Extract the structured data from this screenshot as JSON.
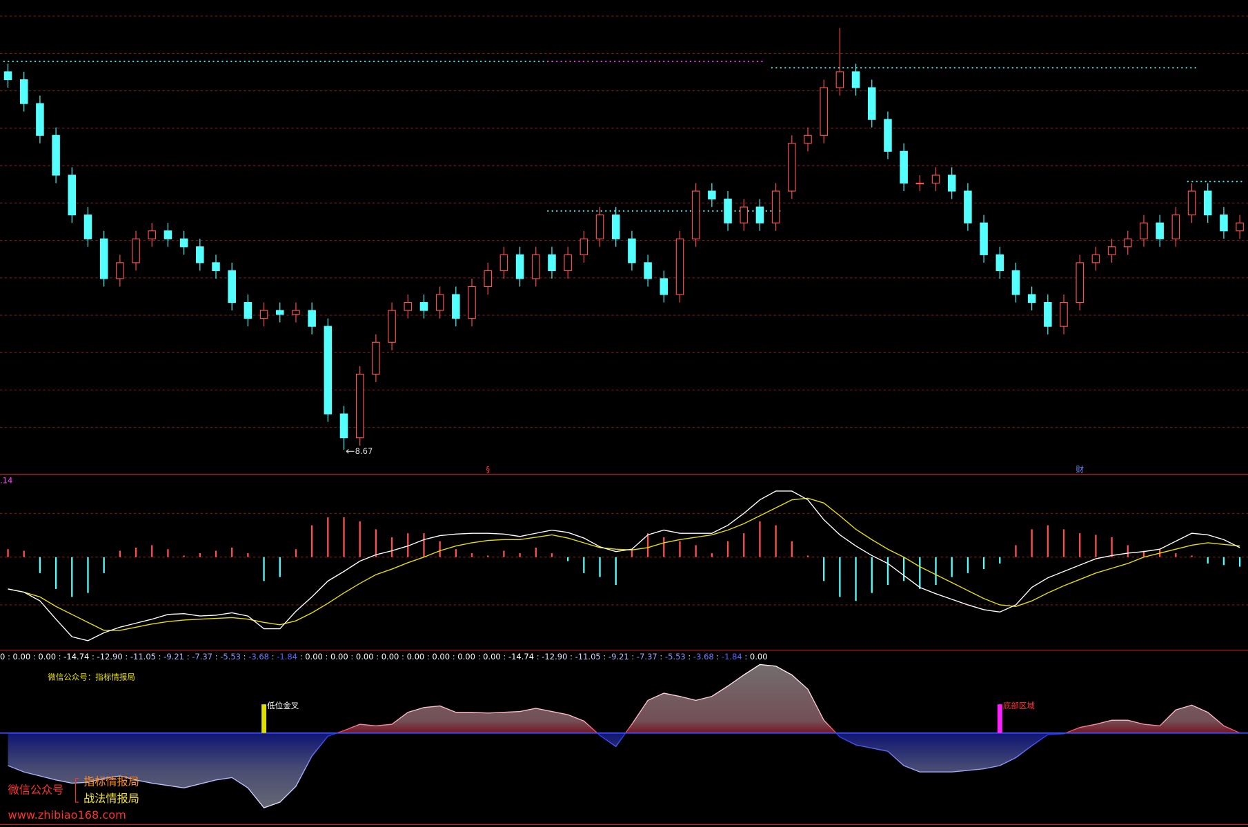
{
  "chart_data": [
    {
      "type": "candlestick",
      "open": [
        13.42,
        13.32,
        13.02,
        12.62,
        12.12,
        11.62,
        11.32,
        10.82,
        11.02,
        11.32,
        11.42,
        11.32,
        11.22,
        11.02,
        10.92,
        10.52,
        10.32,
        10.42,
        10.37,
        10.42,
        10.22,
        9.12,
        8.82,
        9.62,
        10.02,
        10.42,
        10.52,
        10.42,
        10.62,
        10.32,
        10.72,
        10.92,
        11.12,
        10.82,
        11.12,
        10.92,
        11.12,
        11.32,
        11.62,
        11.32,
        11.02,
        10.82,
        10.62,
        11.32,
        11.92,
        11.82,
        11.52,
        11.72,
        11.52,
        11.92,
        12.52,
        12.62,
        13.22,
        13.42,
        13.22,
        12.82,
        12.42,
        12.02,
        12.02,
        12.12,
        11.92,
        11.52,
        11.12,
        10.92,
        10.62,
        10.52,
        10.22,
        10.52,
        11.02,
        11.12,
        11.22,
        11.32,
        11.52,
        11.32,
        11.62,
        11.92,
        11.62,
        11.42
      ],
      "high": [
        13.52,
        13.42,
        13.12,
        12.72,
        12.22,
        11.72,
        11.42,
        11.12,
        11.42,
        11.52,
        11.52,
        11.42,
        11.32,
        11.12,
        11.02,
        10.62,
        10.52,
        10.52,
        10.52,
        10.52,
        10.32,
        9.22,
        9.72,
        10.12,
        10.52,
        10.62,
        10.62,
        10.72,
        10.72,
        10.82,
        11.02,
        11.22,
        11.22,
        11.22,
        11.22,
        11.22,
        11.42,
        11.72,
        11.72,
        11.42,
        11.12,
        10.92,
        11.42,
        12.02,
        12.02,
        11.92,
        11.82,
        11.82,
        12.02,
        12.62,
        12.72,
        13.32,
        13.97,
        13.52,
        13.32,
        12.92,
        12.52,
        12.12,
        12.22,
        12.22,
        12.02,
        11.62,
        11.22,
        11.02,
        10.72,
        10.62,
        10.62,
        11.12,
        11.22,
        11.32,
        11.42,
        11.62,
        11.62,
        11.72,
        12.02,
        12.02,
        11.72,
        11.62
      ],
      "low": [
        13.22,
        12.92,
        12.52,
        12.02,
        11.52,
        11.22,
        10.72,
        10.72,
        10.92,
        11.22,
        11.22,
        11.12,
        10.92,
        10.82,
        10.42,
        10.22,
        10.22,
        10.27,
        10.27,
        10.12,
        9.02,
        8.67,
        8.72,
        9.52,
        9.92,
        10.32,
        10.32,
        10.32,
        10.22,
        10.22,
        10.62,
        10.82,
        10.72,
        10.72,
        10.82,
        10.82,
        11.02,
        11.22,
        11.22,
        10.92,
        10.72,
        10.52,
        10.52,
        11.22,
        11.72,
        11.42,
        11.42,
        11.42,
        11.42,
        11.82,
        12.42,
        12.52,
        13.12,
        13.12,
        12.72,
        12.32,
        11.92,
        11.92,
        11.92,
        11.82,
        11.42,
        11.02,
        10.82,
        10.52,
        10.42,
        10.12,
        10.12,
        10.42,
        10.92,
        11.02,
        11.12,
        11.22,
        11.22,
        11.22,
        11.52,
        11.52,
        11.32,
        11.32
      ],
      "close": [
        13.32,
        13.02,
        12.62,
        12.12,
        11.62,
        11.32,
        10.82,
        11.02,
        11.32,
        11.42,
        11.32,
        11.22,
        11.02,
        10.92,
        10.52,
        10.32,
        10.42,
        10.37,
        10.42,
        10.22,
        9.12,
        8.82,
        9.62,
        10.02,
        10.42,
        10.52,
        10.42,
        10.62,
        10.32,
        10.72,
        10.92,
        11.12,
        10.82,
        11.12,
        10.92,
        11.12,
        11.32,
        11.62,
        11.32,
        11.02,
        10.82,
        10.62,
        11.32,
        11.92,
        11.82,
        11.52,
        11.72,
        11.52,
        11.92,
        12.52,
        12.62,
        13.22,
        13.42,
        13.22,
        12.82,
        12.42,
        12.02,
        12.02,
        12.12,
        11.92,
        11.52,
        11.12,
        10.92,
        10.62,
        10.52,
        10.22,
        10.52,
        11.02,
        11.12,
        11.22,
        11.32,
        11.52,
        11.32,
        11.62,
        11.92,
        11.62,
        11.42,
        11.52
      ],
      "ylim": [
        8.42,
        14.32
      ],
      "up_color": "#ff5050",
      "down_color": "#54ffff",
      "levels": [
        {
          "value": 13.55,
          "from": 0,
          "to": 34,
          "color": "#40e0e0"
        },
        {
          "value": 13.55,
          "from": 34,
          "to": 47,
          "color": "#e040e0"
        },
        {
          "value": 13.47,
          "from": 48,
          "to": 74,
          "color": "#40e0e0"
        },
        {
          "value": 11.67,
          "from": 34,
          "to": 48,
          "color": "#40e0e0"
        },
        {
          "value": 12.04,
          "from": 74,
          "to": 77,
          "color": "#40e0e0"
        }
      ],
      "events": [
        {
          "at": 30,
          "label": "§",
          "color": "#ff3030"
        },
        {
          "at": 67,
          "label": "财",
          "color": "#7090ff"
        }
      ]
    },
    {
      "type": "macd",
      "label": ".14",
      "label_color": "#ff40ff",
      "dif": [
        -0.4,
        -0.44,
        -0.55,
        -0.78,
        -1.0,
        -1.05,
        -0.95,
        -0.88,
        -0.83,
        -0.78,
        -0.72,
        -0.71,
        -0.74,
        -0.73,
        -0.7,
        -0.74,
        -0.9,
        -0.9,
        -0.68,
        -0.5,
        -0.3,
        -0.18,
        -0.05,
        0.03,
        0.08,
        0.14,
        0.22,
        0.27,
        0.29,
        0.3,
        0.3,
        0.29,
        0.26,
        0.3,
        0.34,
        0.31,
        0.24,
        0.13,
        0.07,
        0.1,
        0.28,
        0.34,
        0.3,
        0.3,
        0.3,
        0.4,
        0.55,
        0.72,
        0.83,
        0.83,
        0.72,
        0.47,
        0.28,
        0.14,
        0.02,
        -0.08,
        -0.23,
        -0.38,
        -0.46,
        -0.53,
        -0.6,
        -0.66,
        -0.69,
        -0.6,
        -0.38,
        -0.26,
        -0.18,
        -0.1,
        -0.02,
        0.02,
        0.05,
        0.07,
        0.1,
        0.2,
        0.3,
        0.28,
        0.22,
        0.12
      ],
      "dea": [
        -0.4,
        -0.44,
        -0.5,
        -0.62,
        -0.72,
        -0.82,
        -0.92,
        -0.92,
        -0.88,
        -0.84,
        -0.81,
        -0.79,
        -0.78,
        -0.77,
        -0.76,
        -0.78,
        -0.82,
        -0.85,
        -0.8,
        -0.7,
        -0.58,
        -0.45,
        -0.33,
        -0.22,
        -0.15,
        -0.07,
        0.0,
        0.08,
        0.14,
        0.18,
        0.21,
        0.22,
        0.22,
        0.25,
        0.28,
        0.24,
        0.18,
        0.12,
        0.1,
        0.09,
        0.12,
        0.18,
        0.22,
        0.25,
        0.28,
        0.34,
        0.42,
        0.52,
        0.62,
        0.72,
        0.74,
        0.68,
        0.52,
        0.35,
        0.22,
        0.1,
        0.0,
        -0.12,
        -0.22,
        -0.32,
        -0.42,
        -0.52,
        -0.6,
        -0.62,
        -0.55,
        -0.45,
        -0.36,
        -0.28,
        -0.2,
        -0.14,
        -0.08,
        0.0,
        0.05,
        0.1,
        0.15,
        0.18,
        0.16,
        0.14
      ],
      "histogram": [
        0.1,
        0.08,
        -0.2,
        -0.4,
        -0.5,
        -0.45,
        -0.2,
        0.08,
        0.12,
        0.15,
        0.1,
        0.02,
        0.05,
        0.08,
        0.12,
        0.05,
        -0.3,
        -0.25,
        0.1,
        0.4,
        0.5,
        0.5,
        0.45,
        0.35,
        0.25,
        0.3,
        0.3,
        0.2,
        0.1,
        0.05,
        0.02,
        0.08,
        0.05,
        0.12,
        0.05,
        -0.05,
        -0.2,
        -0.25,
        -0.35,
        0.1,
        0.3,
        0.25,
        0.2,
        0.15,
        0.05,
        0.2,
        0.3,
        0.45,
        0.4,
        0.2,
        0.02,
        -0.3,
        -0.5,
        -0.55,
        -0.45,
        -0.35,
        -0.3,
        -0.4,
        -0.35,
        -0.25,
        -0.2,
        -0.15,
        -0.08,
        0.15,
        0.35,
        0.4,
        0.35,
        0.3,
        0.28,
        0.25,
        0.15,
        0.08,
        0.1,
        0.05,
        0.02,
        -0.08,
        -0.1,
        -0.12
      ],
      "ylim": [
        -1.17,
        1.03
      ],
      "dif_color": "#ffffff",
      "dea_color": "#e8e000",
      "up_color": "#ff5050",
      "down_color": "#54ffff"
    },
    {
      "type": "band",
      "caption": "微信公众号：指标情报局",
      "readout": [
        "0",
        "0.00",
        "0.00",
        "-14.74",
        "-12.90",
        "-11.05",
        "-9.21",
        "-7.37",
        "-5.53",
        "-3.68",
        "-1.84",
        "0.00",
        "0.00",
        "0.00",
        "0.00",
        "0.00",
        "0.00",
        "0.00",
        "0.00",
        "-14.74",
        "-12.90",
        "-11.05",
        "-9.21",
        "-7.37",
        "-5.53",
        "-3.68",
        "-1.84",
        "0.00"
      ],
      "separator": " : ",
      "values": [
        -0.41,
        -0.49,
        -0.54,
        -0.59,
        -0.63,
        -0.62,
        -0.57,
        -0.54,
        -0.59,
        -0.63,
        -0.66,
        -0.69,
        -0.64,
        -0.59,
        -0.56,
        -0.69,
        -0.94,
        -0.87,
        -0.67,
        -0.29,
        -0.04,
        0.03,
        0.11,
        0.09,
        0.11,
        0.26,
        0.32,
        0.34,
        0.26,
        0.26,
        0.25,
        0.26,
        0.27,
        0.31,
        0.27,
        0.23,
        0.15,
        -0.03,
        -0.17,
        0.11,
        0.41,
        0.5,
        0.46,
        0.41,
        0.46,
        0.59,
        0.73,
        0.86,
        0.84,
        0.73,
        0.55,
        0.16,
        -0.05,
        -0.15,
        -0.19,
        -0.23,
        -0.41,
        -0.49,
        -0.49,
        -0.49,
        -0.47,
        -0.45,
        -0.41,
        -0.31,
        -0.16,
        -0.02,
        -0.01,
        0.07,
        0.11,
        0.16,
        0.16,
        0.11,
        0.09,
        0.29,
        0.35,
        0.26,
        0.09,
        0.0
      ],
      "ylim": [
        -1.14,
        1.01
      ],
      "signals": [
        {
          "at": 16,
          "label": "低位金叉",
          "color": "#e0e000"
        },
        {
          "at": 62,
          "label": "底部区域",
          "color": "#ff20ff"
        }
      ]
    }
  ],
  "watermark": {
    "line1": "微信公众号",
    "brand1": "指标情报局",
    "brand2": "战法情报局",
    "url": "www.zhibiao168.com"
  }
}
